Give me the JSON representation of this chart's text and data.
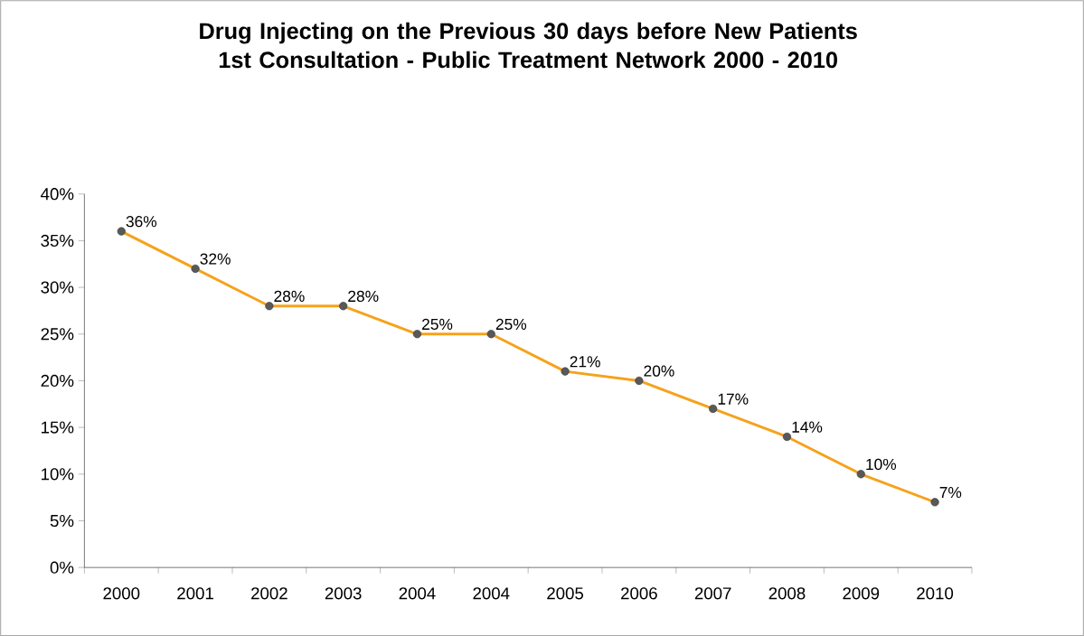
{
  "chart_data": {
    "type": "line",
    "title": "Drug Injecting on the Previous 30 days before New Patients 1st Consultation - Public Treatment Network 2000 - 2010",
    "categories": [
      "2000",
      "2001",
      "2002",
      "2003",
      "2004",
      "2004",
      "2005",
      "2006",
      "2007",
      "2008",
      "2009",
      "2010"
    ],
    "values": [
      36,
      32,
      28,
      28,
      25,
      25,
      21,
      20,
      17,
      14,
      10,
      7
    ],
    "value_labels": [
      "36%",
      "32%",
      "28%",
      "28%",
      "25%",
      "25%",
      "21%",
      "20%",
      "17%",
      "14%",
      "10%",
      "7%"
    ],
    "color": "#f5a21b",
    "marker": "circle",
    "grid": false,
    "ylim": [
      0,
      40
    ],
    "yticks": [
      {
        "value": 0,
        "label": "0%"
      },
      {
        "value": 5,
        "label": "5%"
      },
      {
        "value": 10,
        "label": "10%"
      },
      {
        "value": 15,
        "label": "15%"
      },
      {
        "value": 20,
        "label": "20%"
      },
      {
        "value": 25,
        "label": "25%"
      },
      {
        "value": 30,
        "label": "30%"
      },
      {
        "value": 35,
        "label": "35%"
      },
      {
        "value": 40,
        "label": "40%"
      }
    ]
  }
}
